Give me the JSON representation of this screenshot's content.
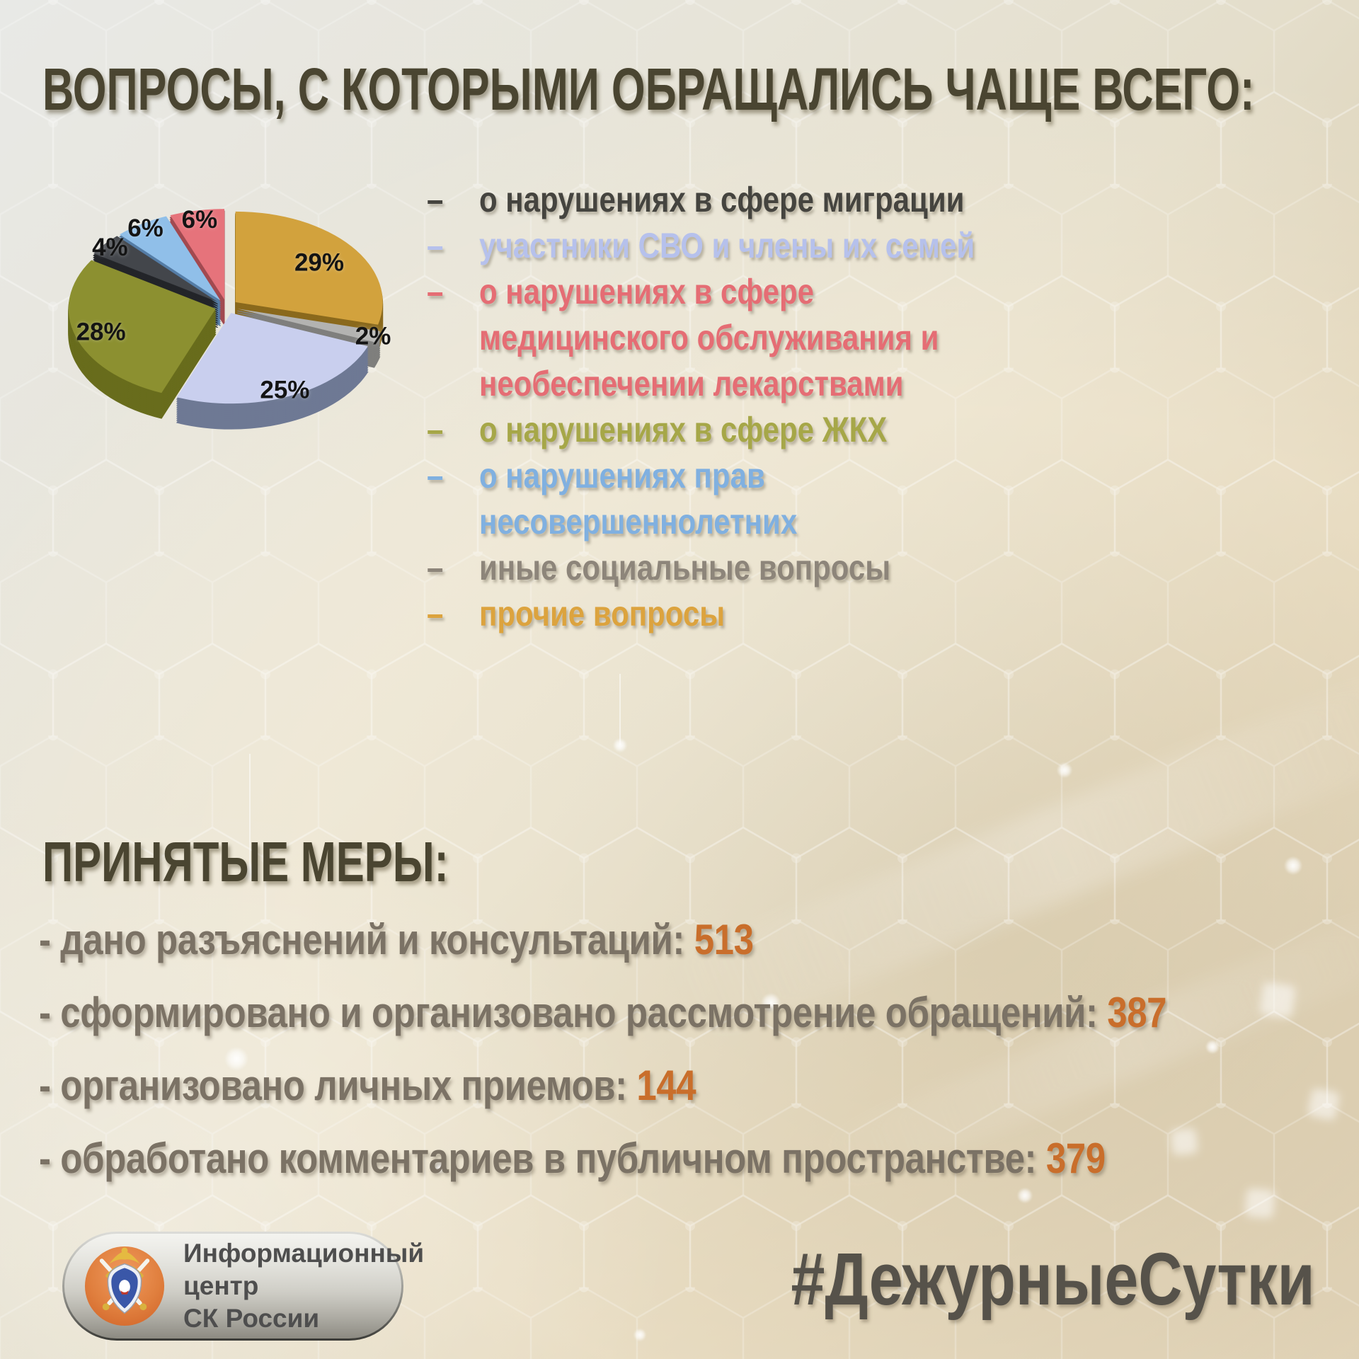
{
  "title": "ВОПРОСЫ, С КОТОРЫМИ ОБРАЩАЛИСЬ ЧАЩЕ ВСЕГО:",
  "chart_data": {
    "type": "pie",
    "style": "3d-exploded",
    "start_angle": "12 o'clock",
    "direction": "clockwise",
    "slices": [
      {
        "label": "прочие вопросы",
        "value": 29,
        "pct": "29%",
        "color": "#d2a23d",
        "side_color": "#8a691c",
        "label_r": 0.72
      },
      {
        "label": "иные социальные вопросы",
        "value": 2,
        "pct": "2%",
        "color": "#b3b3b1",
        "side_color": "#7f7f7d",
        "label_r": 0.97
      },
      {
        "label": "участники СВО и члены их семей",
        "value": 25,
        "pct": "25%",
        "color": "#c9cfee",
        "side_color": "#6e7994",
        "label_r": 0.92
      },
      {
        "label": "о нарушениях в сфере ЖКХ",
        "value": 28,
        "pct": "28%",
        "color": "#8c9030",
        "side_color": "#686c1c",
        "label_r": 0.82
      },
      {
        "label": "о нарушениях в сфере миграции",
        "value": 4,
        "pct": "4%",
        "color": "#43464b",
        "side_color": "#232529",
        "label_r": 0.95
      },
      {
        "label": "о нарушениях прав несовершеннолетних",
        "value": 6,
        "pct": "6%",
        "color": "#90bfe9",
        "side_color": "#557da6",
        "label_r": 0.95
      },
      {
        "label": "о нарушениях в сфере медицинского обслуживания и необеспечении лекарствами",
        "value": 6,
        "pct": "6%",
        "color": "#e6737b",
        "side_color": "#a24a51",
        "label_r": 0.9
      }
    ]
  },
  "legend": {
    "dash": "–",
    "items": [
      {
        "text": "о нарушениях в сфере миграции",
        "color": "#45443f"
      },
      {
        "text": "участники СВО и члены их семей",
        "color": "#b6c1ec"
      },
      {
        "text": "о нарушениях в сфере медицинского обслуживания и необеспечении лекарствами",
        "color": "#e56d74"
      },
      {
        "text": "о нарушениях в сфере ЖКХ",
        "color": "#a6a748"
      },
      {
        "text": "о нарушениях прав несовершеннолетних",
        "color": "#80b0e0"
      },
      {
        "text": "иные социальные вопросы",
        "color": "#8d857a"
      },
      {
        "text": "прочие вопросы",
        "color": "#dca33e"
      }
    ]
  },
  "measures": {
    "heading": "ПРИНЯТЫЕ МЕРЫ:",
    "accent_color": "#c96e2b",
    "items": [
      {
        "label": "- дано разъяснений и консультаций:",
        "value": "513"
      },
      {
        "label": "- сформировано и организовано рассмотрение обращений:",
        "value": "387"
      },
      {
        "label": "- организовано личных приемов:",
        "value": "144"
      },
      {
        "label": "- обработано комментариев в публичном пространстве:",
        "value": "379"
      }
    ]
  },
  "footer": {
    "logo_line1": "Информационный центр",
    "logo_line2": "СК России",
    "hashtag": "#ДежурныеСутки"
  }
}
